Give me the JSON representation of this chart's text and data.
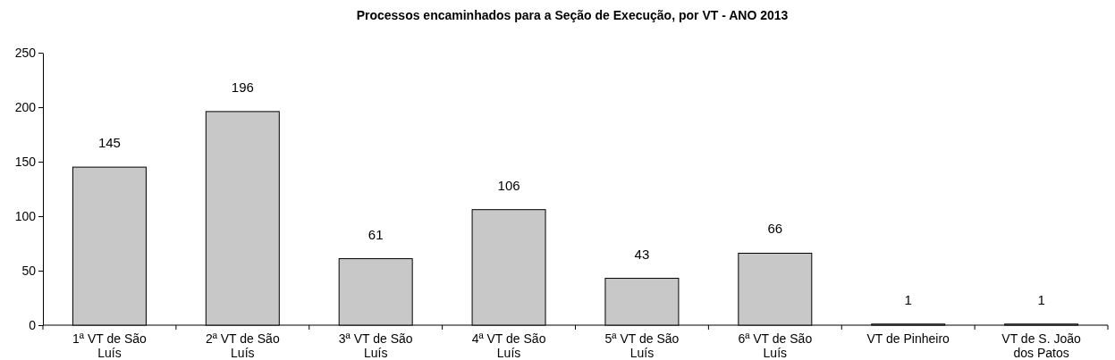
{
  "chart_data": {
    "type": "bar",
    "title": "Processos encaminhados para a Seção de Execução, por VT  - ANO 2013",
    "categories": [
      "1ª VT de São Luís",
      "2ª VT de São Luís",
      "3ª VT de São Luís",
      "4ª VT de São Luís",
      "5ª VT de São Luís",
      "6ª VT de São Luís",
      "VT de Pinheiro",
      "VT de S. João dos Patos"
    ],
    "values": [
      145,
      196,
      61,
      106,
      43,
      66,
      1,
      1
    ],
    "color": "#c8c8c8",
    "ylim": [
      0,
      250
    ],
    "yticks": [
      0,
      50,
      100,
      150,
      200,
      250
    ],
    "data_labels": true,
    "grid": false
  }
}
